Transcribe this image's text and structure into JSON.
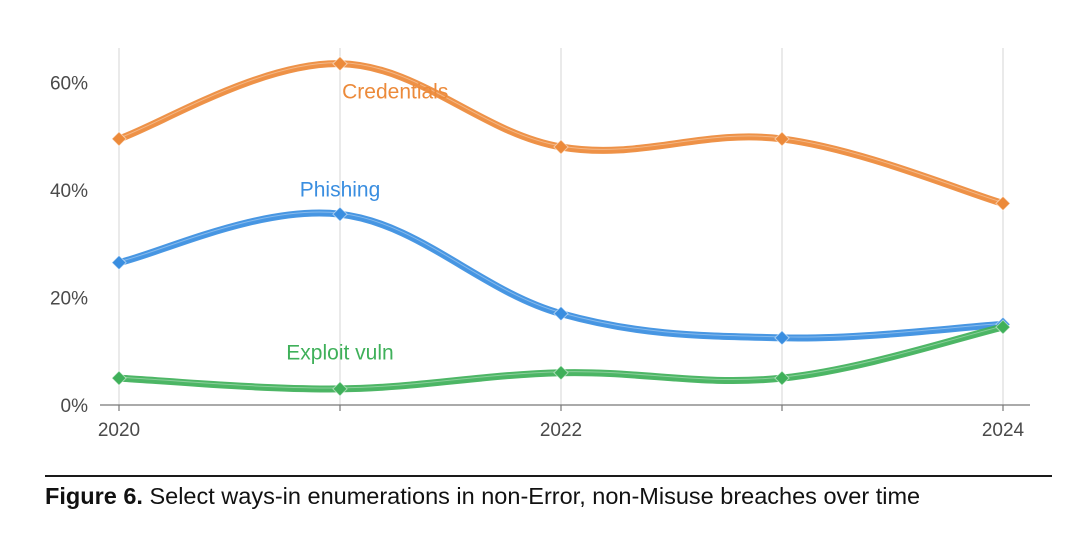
{
  "chart_data": {
    "type": "line",
    "title": "",
    "xlabel": "",
    "ylabel": "",
    "x": [
      2020,
      2021,
      2022,
      2023,
      2024
    ],
    "xticks": [
      "2020",
      "2022",
      "2024"
    ],
    "xlim": [
      2020,
      2024
    ],
    "ylim": [
      0,
      65
    ],
    "yticks": [
      "0%",
      "20%",
      "40%",
      "60%"
    ],
    "ytick_values": [
      0,
      20,
      40,
      60
    ],
    "grid": "vertical",
    "legend": "inline",
    "series": [
      {
        "name": "Credentials",
        "color": "#ec8a3a",
        "values": [
          49.5,
          63.5,
          48,
          49.5,
          37.5
        ]
      },
      {
        "name": "Phishing",
        "color": "#3a8ee0",
        "values": [
          26.5,
          35.5,
          17,
          12.5,
          15
        ]
      },
      {
        "name": "Exploit vuln",
        "color": "#3fb05a",
        "values": [
          5,
          3,
          6,
          5,
          14.5
        ]
      }
    ]
  },
  "caption": {
    "number": "Figure 6.",
    "text": " Select ways-in enumerations in non-Error, non-Misuse breaches over time"
  }
}
